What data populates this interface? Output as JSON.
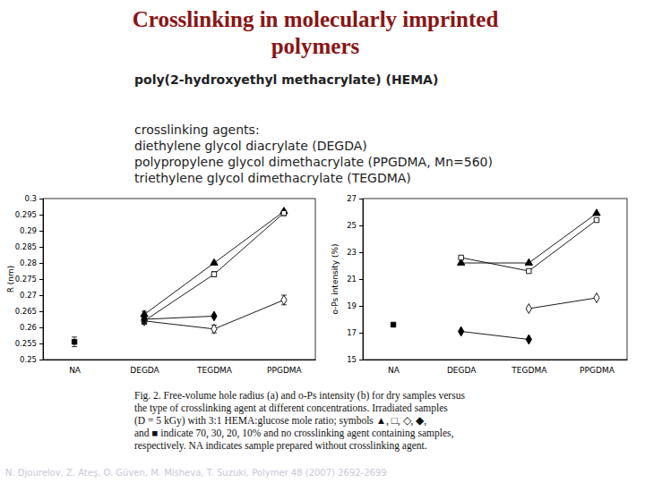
{
  "slide": {
    "title": [
      "Crosslinking in molecularly imprinted",
      "polymers"
    ],
    "subtitle": "poly(2-hydroxyethyl methacrylate) (HEMA)",
    "agents_heading": "crosslinking agents:",
    "agents": [
      "diethylene glycol diacrylate (DEGDA)",
      "polypropylene glycol dimethacrylate (PPGDMA, Mn=560)",
      "triethylene glycol dimethacrylate (TEGDMA)"
    ],
    "caption": [
      "Fig. 2. Free-volume hole radius (a) and o-Ps intensity (b) for dry samples versus",
      "the type of crosslinking agent at different concentrations. Irradiated samples",
      "(D = 5 kGy) with 3:1 HEMA:glucose mole ratio; symbols ▲, □, ◇, ◆,",
      "and ■ indicate 70, 30, 20, 10% and no crosslinking agent containing samples,",
      "respectively. NA indicates sample prepared without crosslinking agent."
    ],
    "citation": "N. Djourelov, Z. Ateş, O. Güven, M. Misheva, T. Suzuki, Polymer 48 (2007) 2692-2699"
  },
  "chart_data": [
    {
      "type": "line",
      "ylabel": "R (nm)",
      "categories": [
        "NA",
        "DEGDA",
        "TEGDMA",
        "PPGDMA"
      ],
      "ylim": [
        0.25,
        0.3
      ],
      "yticks": [
        0.25,
        0.255,
        0.26,
        0.265,
        0.27,
        0.275,
        0.28,
        0.285,
        0.29,
        0.295,
        0.3
      ],
      "series": [
        {
          "color": "#000000",
          "marker": "filled-triangle",
          "line_style": "solid",
          "values": [
            null,
            0.264,
            0.28,
            0.296
          ],
          "errors": [
            null,
            0.001,
            null,
            null
          ]
        },
        {
          "color": "#000000",
          "marker": "open-square",
          "line_style": "solid",
          "values": [
            null,
            0.262,
            0.2765,
            0.2955
          ],
          "errors": [
            null,
            0.001,
            0.0008,
            0.0008
          ]
        },
        {
          "color": "#000000",
          "marker": "open-diamond",
          "line_style": "solid",
          "values": [
            null,
            0.262,
            0.2595,
            0.2685
          ],
          "errors": [
            null,
            0.001,
            0.0012,
            0.0015
          ]
        },
        {
          "color": "#000000",
          "marker": "filled-diamond",
          "line_style": "solid",
          "values": [
            null,
            0.2625,
            0.2635,
            null
          ],
          "errors": [
            null,
            null,
            null,
            null
          ]
        },
        {
          "color": "#000000",
          "marker": "filled-square",
          "line_style": "none",
          "values": [
            0.2555,
            null,
            null,
            null
          ],
          "errors": [
            0.0015,
            null,
            null,
            null
          ]
        }
      ]
    },
    {
      "type": "line",
      "ylabel": "o-Ps intensity (%)",
      "categories": [
        "NA",
        "DEGDA",
        "TEGDMA",
        "PPGDMA"
      ],
      "ylim": [
        15,
        27
      ],
      "yticks": [
        15,
        17,
        19,
        21,
        23,
        25,
        27
      ],
      "series": [
        {
          "color": "#000000",
          "marker": "filled-triangle",
          "line_style": "solid",
          "values": [
            null,
            22.2,
            22.2,
            25.9
          ]
        },
        {
          "color": "#000000",
          "marker": "open-square",
          "line_style": "solid",
          "values": [
            null,
            22.6,
            21.6,
            25.4
          ]
        },
        {
          "color": "#000000",
          "marker": "open-diamond",
          "line_style": "solid",
          "values": [
            null,
            null,
            18.8,
            19.6
          ]
        },
        {
          "color": "#000000",
          "marker": "filled-diamond",
          "line_style": "solid",
          "values": [
            null,
            17.1,
            16.5,
            null
          ]
        },
        {
          "color": "#000000",
          "marker": "filled-square",
          "line_style": "none",
          "values": [
            17.6,
            null,
            null,
            null
          ]
        }
      ]
    }
  ]
}
